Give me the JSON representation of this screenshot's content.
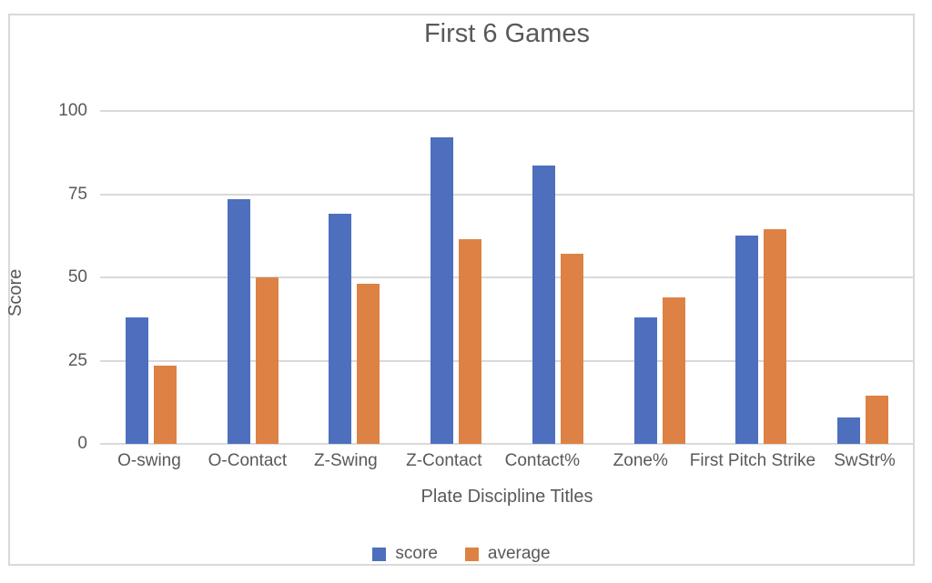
{
  "chart_data": {
    "type": "bar",
    "title": "First 6 Games",
    "xlabel": "Plate Discipline Titles",
    "ylabel": "Score",
    "ylim": [
      0,
      100
    ],
    "yticks": [
      0,
      25,
      50,
      75,
      100
    ],
    "grid": true,
    "legend_position": "bottom",
    "categories": [
      "O-swing",
      "O-Contact",
      "Z-Swing",
      "Z-Contact",
      "Contact%",
      "Zone%",
      "First Pitch Strike",
      "SwStr%"
    ],
    "series": [
      {
        "name": "score",
        "color": "#4D6FBE",
        "values": [
          38,
          73.5,
          69,
          92,
          83.5,
          38,
          62.5,
          8
        ]
      },
      {
        "name": "average",
        "color": "#DD8244",
        "values": [
          23.5,
          50,
          48,
          61.5,
          57,
          44,
          64.5,
          14.5
        ]
      }
    ],
    "colors": {
      "text": "#595959",
      "gridline": "#D9D9D9",
      "frame_border": "#D9D9D9",
      "background": "#FFFFFF"
    }
  }
}
